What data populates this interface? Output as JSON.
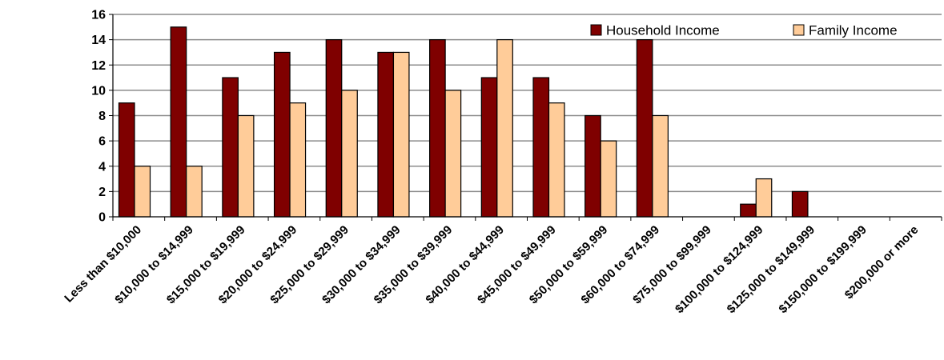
{
  "chart_data": {
    "type": "bar",
    "title": "",
    "xlabel": "",
    "ylabel": "",
    "ylim": [
      0,
      16
    ],
    "yticks": [
      0,
      2,
      4,
      6,
      8,
      10,
      12,
      14,
      16
    ],
    "grid": "horizontal",
    "legend_position": "top-right",
    "categories": [
      "Less than $10,000",
      "$10,000 to $14,999",
      "$15,000 to $19,999",
      "$20,000 to $24,999",
      "$25,000 to $29,999",
      "$30,000 to $34,999",
      "$35,000 to $39,999",
      "$40,000 to $44,999",
      "$45,000 to $49,999",
      "$50,000 to $59,999",
      "$60,000 to $74,999",
      "$75,000 to $99,999",
      "$100,000 to $124,999",
      "$125,000 to $149,999",
      "$150,000 to $199,999",
      "$200,000 or more"
    ],
    "series": [
      {
        "name": "Household Income",
        "color": "#7f0000",
        "values": [
          9,
          15,
          11,
          13,
          14,
          13,
          14,
          11,
          11,
          8,
          14,
          0,
          1,
          2,
          0,
          0
        ]
      },
      {
        "name": "Family Income",
        "color": "#ffcc99",
        "values": [
          4,
          4,
          8,
          9,
          10,
          13,
          10,
          14,
          9,
          6,
          8,
          0,
          3,
          0,
          0,
          0
        ]
      }
    ]
  }
}
